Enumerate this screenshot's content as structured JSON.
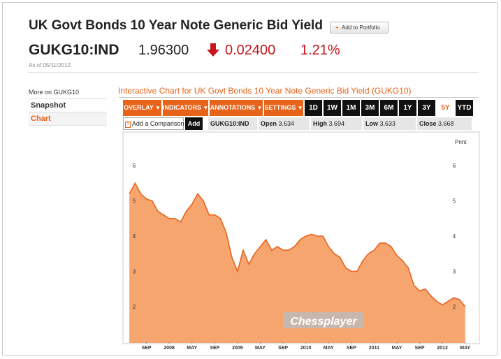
{
  "header": {
    "title": "UK Govt Bonds 10 Year Note Generic Bid Yield",
    "button": "Add to Portfolio",
    "ticker": "GUKG10:IND",
    "price": "1.96300",
    "change": "0.02400",
    "change_pct": "1.21%",
    "as_of": "As of 05/11/2012."
  },
  "sidebar": {
    "heading": "More on GUKG10",
    "items": [
      "Snapshot",
      "Chart"
    ],
    "selected": "Chart"
  },
  "chart_title": "Interactive Chart for UK Govt Bonds 10 Year Note Generic Bid Yield (GUKG10)",
  "toolbar": {
    "menus": [
      "OVERLAY",
      "INDICATORS",
      "ANNOTATIONS",
      "SETTINGS"
    ],
    "ranges": [
      "1D",
      "1W",
      "1M",
      "3M",
      "6M",
      "1Y",
      "3Y",
      "5Y",
      "YTD"
    ],
    "selected_range": "5Y"
  },
  "quote": {
    "help": "?",
    "comparison": "Add a Comparison",
    "add": "Add",
    "symbol": "GUKG10:IND",
    "open_label": "Open",
    "open": 3.634,
    "high_label": "High",
    "high": 3.694,
    "low_label": "Low",
    "low": 3.633,
    "close_label": "Close",
    "close": 3.668
  },
  "chart_data": {
    "type": "area",
    "print": "Print",
    "watermark": "Chessplayer",
    "x": [
      "2007-06",
      "2007-07",
      "2007-08",
      "2007-09",
      "2007-10",
      "2007-11",
      "2007-12",
      "2008-01",
      "2008-02",
      "2008-03",
      "2008-04",
      "2008-05",
      "2008-06",
      "2008-07",
      "2008-08",
      "2008-09",
      "2008-10",
      "2008-11",
      "2008-12",
      "2009-01",
      "2009-02",
      "2009-03",
      "2009-04",
      "2009-05",
      "2009-06",
      "2009-07",
      "2009-08",
      "2009-09",
      "2009-10",
      "2009-11",
      "2009-12",
      "2010-01",
      "2010-02",
      "2010-03",
      "2010-04",
      "2010-05",
      "2010-06",
      "2010-07",
      "2010-08",
      "2010-09",
      "2010-10",
      "2010-11",
      "2010-12",
      "2011-01",
      "2011-02",
      "2011-03",
      "2011-04",
      "2011-05",
      "2011-06",
      "2011-07",
      "2011-08",
      "2011-09",
      "2011-10",
      "2011-11",
      "2011-12",
      "2012-01",
      "2012-02",
      "2012-03",
      "2012-04",
      "2012-05"
    ],
    "series": [
      {
        "color": "#e8631a",
        "values": [
          5.2,
          5.5,
          5.2,
          5.05,
          5.0,
          4.7,
          4.6,
          4.5,
          4.5,
          4.4,
          4.7,
          4.9,
          5.2,
          5.0,
          4.6,
          4.6,
          4.5,
          4.1,
          3.4,
          3.0,
          3.6,
          3.2,
          3.5,
          3.7,
          3.9,
          3.6,
          3.7,
          3.6,
          3.6,
          3.7,
          3.9,
          4.0,
          4.05,
          4.0,
          4.0,
          3.7,
          3.5,
          3.4,
          3.1,
          3.0,
          3.0,
          3.3,
          3.5,
          3.6,
          3.8,
          3.8,
          3.7,
          3.45,
          3.3,
          3.1,
          2.6,
          2.45,
          2.5,
          2.3,
          2.15,
          2.05,
          2.15,
          2.25,
          2.2,
          2.0
        ]
      }
    ],
    "fill": "#f7a56f",
    "xlim": [
      "2007-05",
      "2012-07"
    ],
    "ylim": [
      1,
      7
    ],
    "yticks": [
      2,
      3,
      4,
      5,
      6
    ],
    "xticks": [
      {
        "value": "2007-09",
        "label": "SEP"
      },
      {
        "value": "2008-01",
        "label": "2008"
      },
      {
        "value": "2008-05",
        "label": "MAY"
      },
      {
        "value": "2008-09",
        "label": "SEP"
      },
      {
        "value": "2009-01",
        "label": "2009"
      },
      {
        "value": "2009-05",
        "label": "MAY"
      },
      {
        "value": "2009-09",
        "label": "SEP"
      },
      {
        "value": "2010-01",
        "label": "2010"
      },
      {
        "value": "2010-05",
        "label": "MAY"
      },
      {
        "value": "2010-09",
        "label": "SEP"
      },
      {
        "value": "2011-01",
        "label": "2011"
      },
      {
        "value": "2011-05",
        "label": "MAY"
      },
      {
        "value": "2011-09",
        "label": "SEP"
      },
      {
        "value": "2012-01",
        "label": "2012"
      },
      {
        "value": "2012-05",
        "label": "MAY"
      }
    ]
  }
}
